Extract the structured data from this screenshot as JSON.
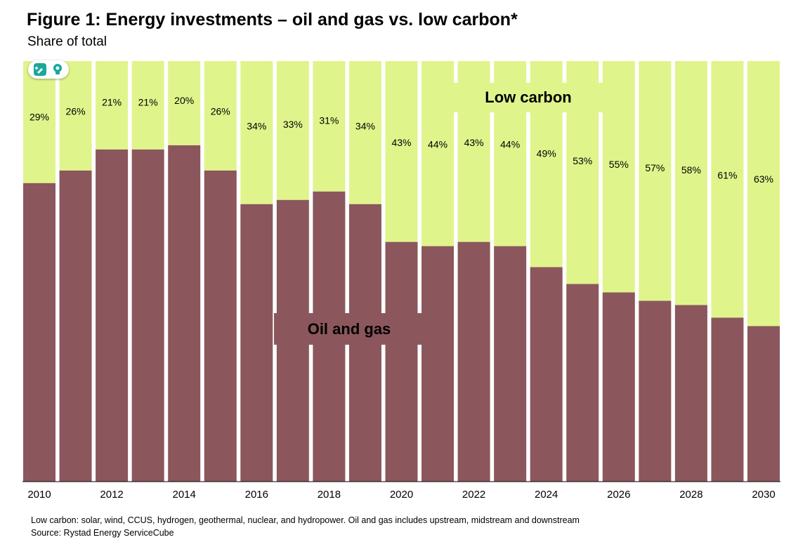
{
  "title": "Figure 1: Energy investments – oil and gas vs. low carbon*",
  "subtitle": "Share of total",
  "footnote": "Low carbon: solar, wind, CCUS, hydrogen, geothermal, nuclear, and hydropower. Oil and gas includes upstream, midstream and downstream",
  "source": "Source:  Rystad Energy ServiceCube",
  "toolbar_icons": [
    "edit-sparkle-icon",
    "lightbulb-icon"
  ],
  "chart_data": {
    "type": "bar",
    "stacked": true,
    "categories": [
      "2010",
      "2011",
      "2012",
      "2013",
      "2014",
      "2015",
      "2016",
      "2017",
      "2018",
      "2019",
      "2020",
      "2021",
      "2022",
      "2023",
      "2024",
      "2025",
      "2026",
      "2027",
      "2028",
      "2029",
      "2030"
    ],
    "x_tick_labels": [
      "2010",
      "",
      "2012",
      "",
      "2014",
      "",
      "2016",
      "",
      "2018",
      "",
      "2020",
      "",
      "2022",
      "",
      "2024",
      "",
      "2026",
      "",
      "2028",
      "",
      "2030"
    ],
    "series": [
      {
        "name": "Oil and gas",
        "color": "#8B575C",
        "values": [
          71,
          74,
          79,
          79,
          80,
          74,
          66,
          67,
          69,
          66,
          57,
          56,
          57,
          56,
          51,
          47,
          45,
          43,
          42,
          39,
          37
        ]
      },
      {
        "name": "Low carbon",
        "color": "#E0F48C",
        "values": [
          29,
          26,
          21,
          21,
          20,
          26,
          34,
          33,
          31,
          34,
          43,
          44,
          43,
          44,
          49,
          53,
          55,
          57,
          58,
          61,
          63
        ],
        "data_labels": [
          "29%",
          "26%",
          "21%",
          "21%",
          "20%",
          "26%",
          "34%",
          "33%",
          "31%",
          "34%",
          "43%",
          "44%",
          "43%",
          "44%",
          "49%",
          "53%",
          "55%",
          "57%",
          "58%",
          "61%",
          "63%"
        ]
      }
    ],
    "ylim": [
      0,
      100
    ],
    "grid": false,
    "legend": "inline labels"
  }
}
